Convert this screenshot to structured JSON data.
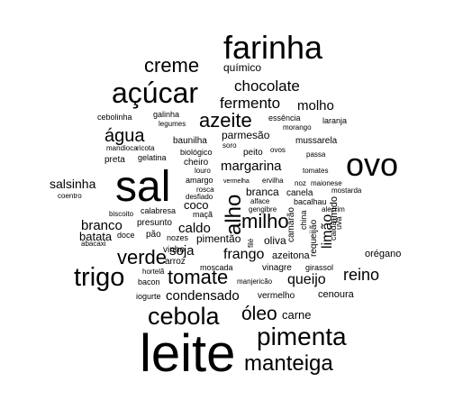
{
  "words": [
    "farinha",
    "creme",
    "químico",
    "açúcar",
    "chocolate",
    "fermento",
    "molho",
    "cebolinha",
    "galinha",
    "legumes",
    "azeite",
    "essência",
    "laranja",
    "morango",
    "parmesão",
    "água",
    "mandioca",
    "ricota",
    "baunilha",
    "soro",
    "mussarela",
    "gelatina",
    "biológico",
    "peito",
    "ovos",
    "preta",
    "cheiro",
    "passa",
    "ovo",
    "margarina",
    "louro",
    "tomates",
    "amargo",
    "vermelha",
    "ervilha",
    "noz",
    "maionese",
    "sal",
    "salsinha",
    "rosca",
    "branca",
    "canela",
    "mostarda",
    "coentro",
    "desfiado",
    "alho",
    "alface",
    "bacalhau",
    "coco",
    "gengibre",
    "alecrim",
    "calabresa",
    "maçã",
    "milho",
    "biscoito",
    "camarão",
    "china",
    "limão",
    "uva",
    "amido",
    "branco",
    "presunto",
    "caldo",
    "requeijão",
    "calda",
    "batata",
    "doce",
    "pão",
    "nozes",
    "pimentão",
    "filé",
    "oliva",
    "abacaxi",
    "verde",
    "soja",
    "frango",
    "azeitona",
    "orégano",
    "vinho",
    "arroz",
    "moscada",
    "vinagre",
    "girassol",
    "trigo",
    "tomate",
    "reino",
    "hortelã",
    "bacon",
    "manjericão",
    "queijo",
    "iogurte",
    "condensado",
    "vermelho",
    "cenoura",
    "cebola",
    "óleo",
    "carne",
    "pimenta",
    "leite",
    "manteiga"
  ]
}
